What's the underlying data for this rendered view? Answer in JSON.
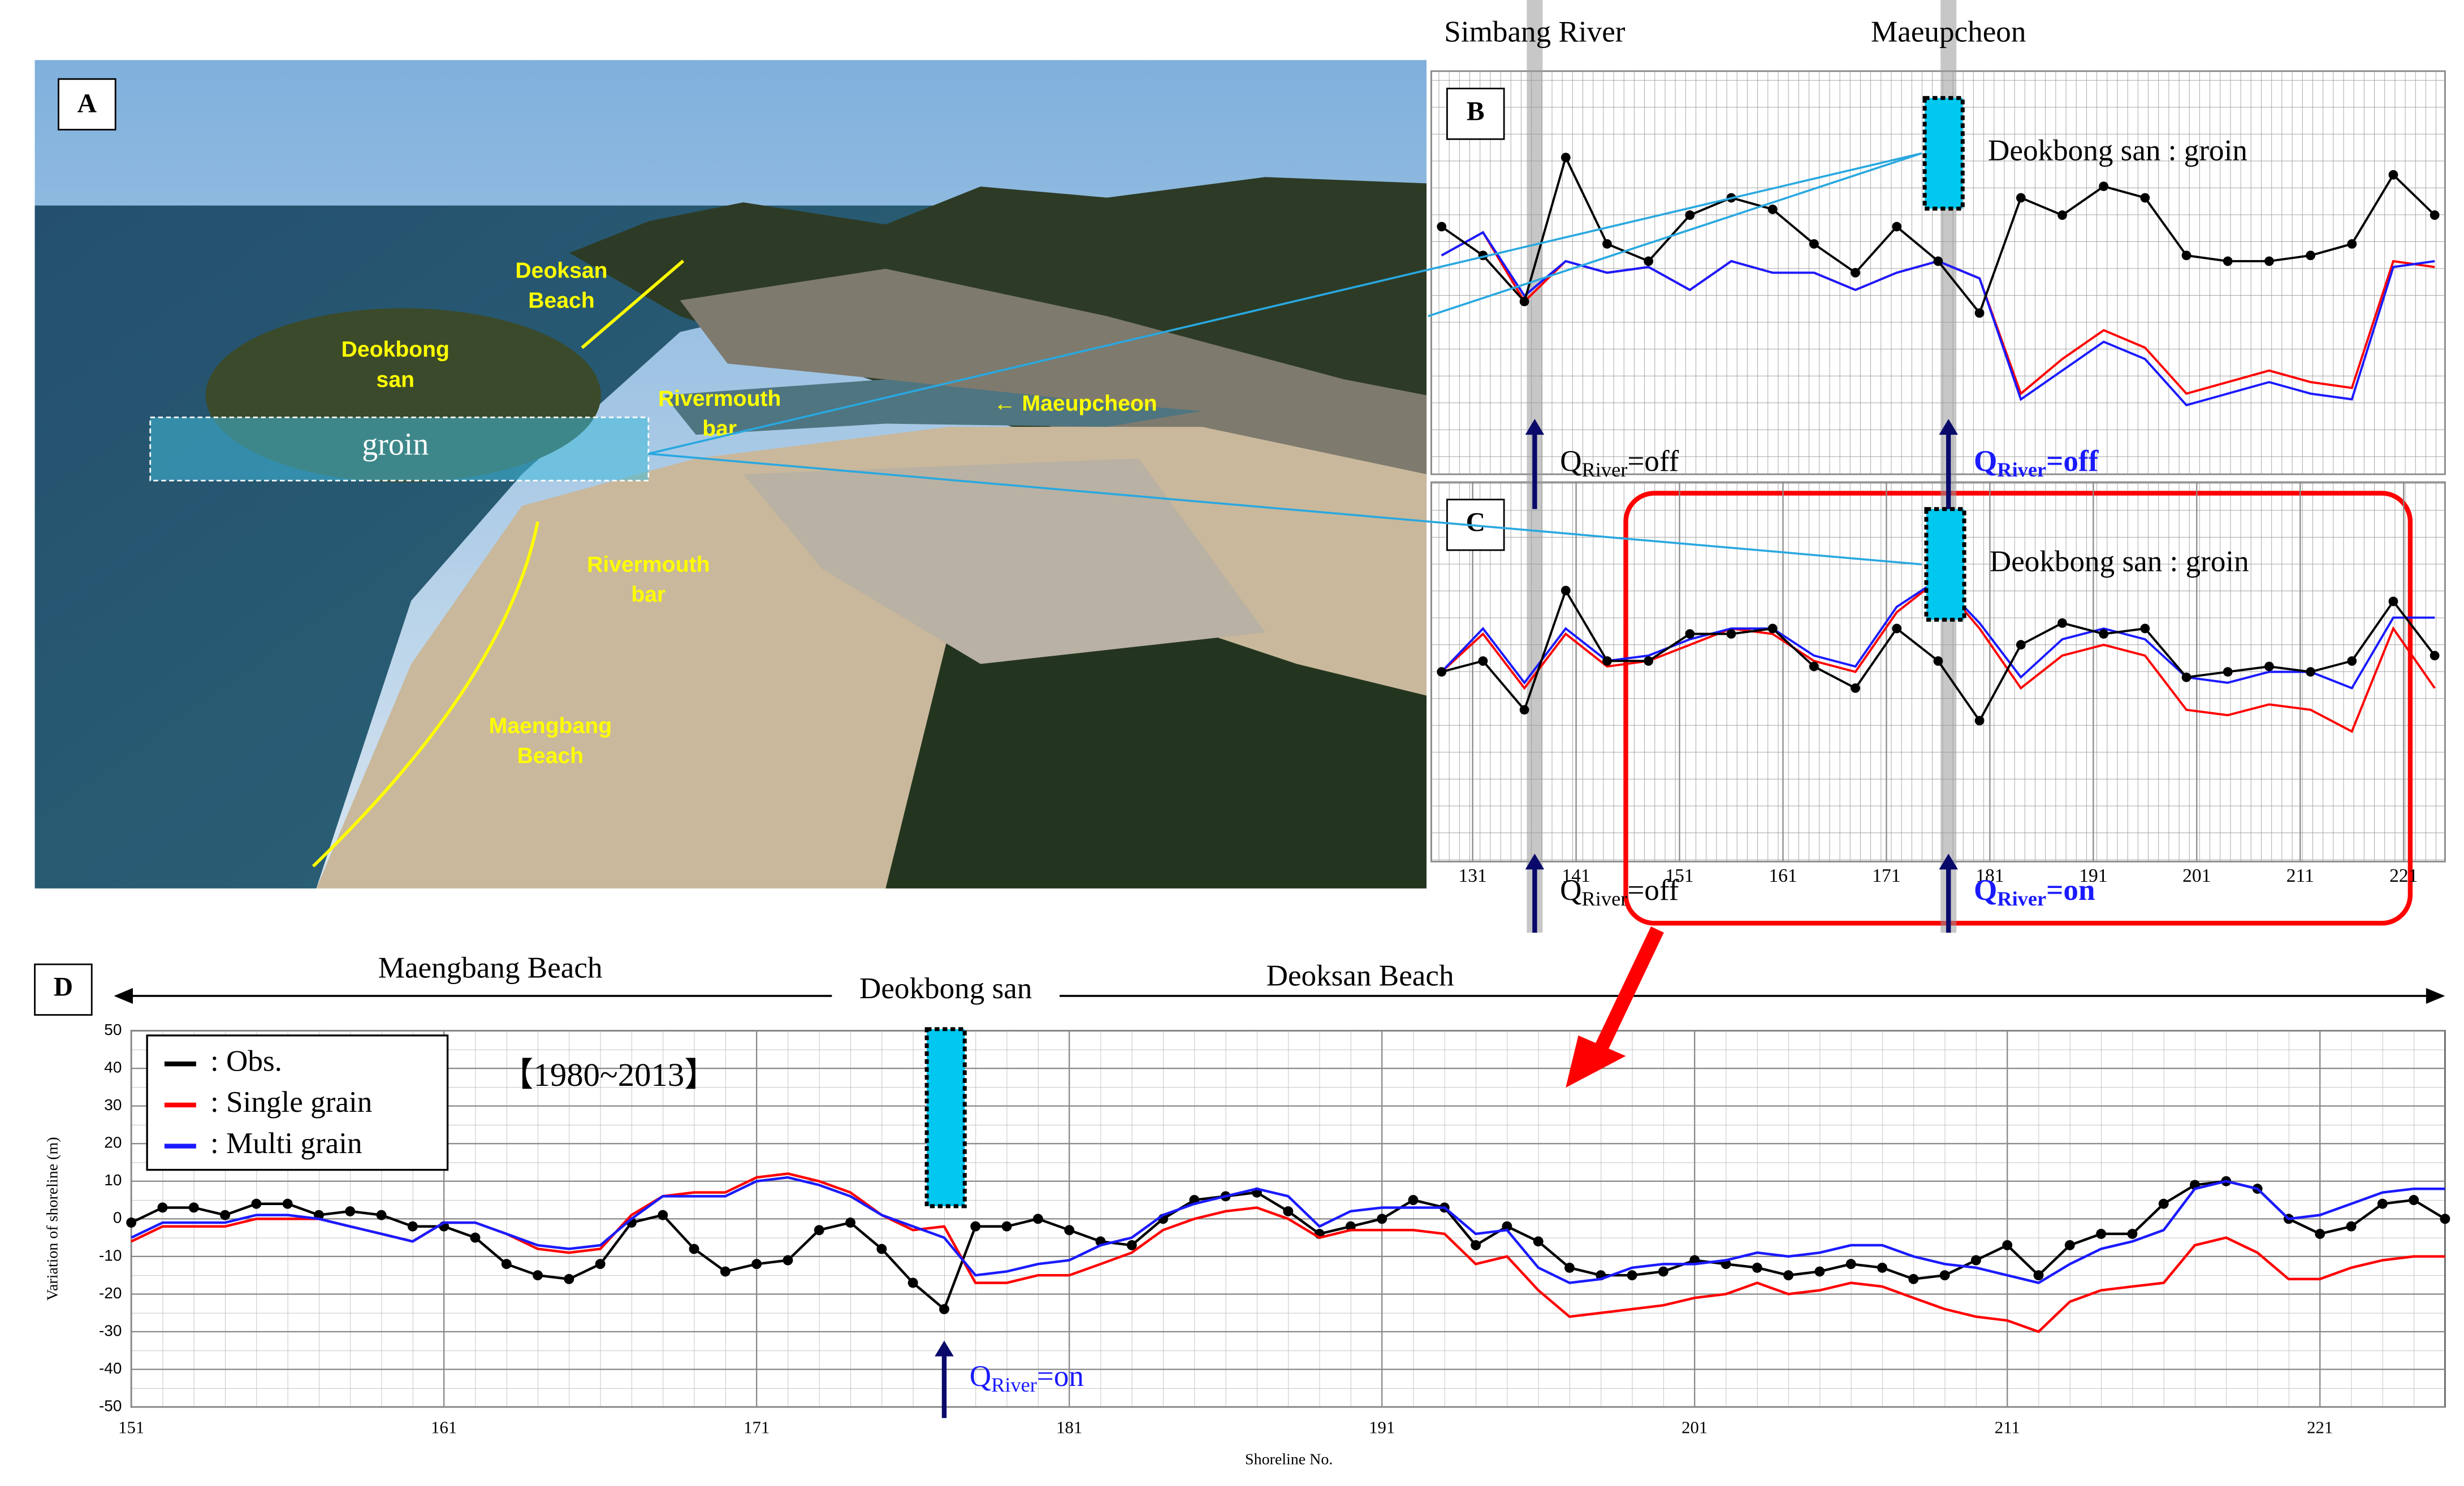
{
  "photo": {
    "panel": "A",
    "groin": "groin",
    "labels": [
      [
        "Deoksan",
        "Beach"
      ],
      [
        "Deokbong",
        "san"
      ],
      [
        "Rivermouth",
        "bar"
      ],
      [
        "← Maeupcheon"
      ],
      [
        "Rivermouth",
        "bar"
      ],
      [
        "Maengbang",
        "Beach"
      ]
    ]
  },
  "chart_data": [
    {
      "type": "line",
      "panel": "B",
      "xlim": [
        127,
        225
      ],
      "ylim": [
        -40,
        30
      ],
      "rivers": [
        {
          "name": "Simbang River",
          "x": 137
        },
        {
          "name": "Maeupcheon",
          "x": 177
        }
      ],
      "groin_label": "Deokbong san : groin",
      "annotations": [
        {
          "x": 137,
          "q": "Q",
          "sub": "River",
          "state": "=off",
          "color": "#000000",
          "bold": false
        },
        {
          "x": 177,
          "q": "Q",
          "sub": "River",
          "state": "=off",
          "color": "#1a1aff",
          "bold": true
        }
      ],
      "x": [
        128,
        132,
        136,
        140,
        144,
        148,
        152,
        156,
        160,
        164,
        168,
        172,
        176,
        180,
        184,
        188,
        192,
        196,
        200,
        204,
        208,
        212,
        216,
        220,
        224
      ],
      "series": [
        {
          "color": "#ff0000",
          "values": [
            -2,
            2,
            -10,
            -3,
            -5,
            -4,
            -8,
            -3,
            -5,
            -5,
            -8,
            -5,
            -3,
            -6,
            -26,
            -20,
            -15,
            -18,
            -26,
            -24,
            -22,
            -24,
            -25,
            -3,
            -4
          ]
        },
        {
          "color": "#1a1aff",
          "values": [
            -2,
            2,
            -9,
            -3,
            -5,
            -4,
            -8,
            -3,
            -5,
            -5,
            -8,
            -5,
            -3,
            -6,
            -27,
            -22,
            -17,
            -20,
            -28,
            -26,
            -24,
            -26,
            -27,
            -4,
            -3
          ]
        },
        {
          "color": "#000000",
          "marker": true,
          "values": [
            3,
            -2,
            -10,
            15,
            0,
            -3,
            5,
            8,
            6,
            0,
            -5,
            3,
            -3,
            -12,
            8,
            5,
            10,
            8,
            -2,
            -3,
            -3,
            -2,
            0,
            12,
            5
          ]
        }
      ]
    },
    {
      "type": "line",
      "panel": "C",
      "xlim": [
        127,
        225
      ],
      "ylim": [
        -40,
        30
      ],
      "xticks": [
        131,
        141,
        151,
        161,
        171,
        181,
        191,
        201,
        211,
        221
      ],
      "groin_label": "Deokbong san : groin",
      "annotations": [
        {
          "x": 137,
          "q": "Q",
          "sub": "River",
          "state": "=off",
          "color": "#000000",
          "bold": false
        },
        {
          "x": 177,
          "q": "Q",
          "sub": "River",
          "state": "=on",
          "color": "#1a1aff",
          "bold": true
        }
      ],
      "x": [
        128,
        132,
        136,
        140,
        144,
        148,
        152,
        156,
        160,
        164,
        168,
        172,
        176,
        180,
        184,
        188,
        192,
        196,
        200,
        204,
        208,
        212,
        216,
        220,
        224
      ],
      "series": [
        {
          "color": "#ff0000",
          "values": [
            -5,
            2,
            -8,
            2,
            -4,
            -3,
            0,
            3,
            2,
            -3,
            -5,
            6,
            12,
            3,
            -8,
            -2,
            0,
            -2,
            -12,
            -13,
            -11,
            -12,
            -16,
            3,
            -8
          ]
        },
        {
          "color": "#1a1aff",
          "values": [
            -5,
            3,
            -7,
            3,
            -3,
            -2,
            1,
            3,
            3,
            -2,
            -4,
            7,
            12,
            4,
            -6,
            1,
            3,
            1,
            -6,
            -7,
            -5,
            -5,
            -8,
            5,
            5
          ]
        },
        {
          "color": "#000000",
          "marker": true,
          "values": [
            -5,
            -3,
            -12,
            10,
            -3,
            -3,
            2,
            2,
            3,
            -4,
            -8,
            3,
            -3,
            -14,
            0,
            4,
            2,
            3,
            -6,
            -5,
            -4,
            -5,
            -3,
            8,
            -2
          ]
        }
      ]
    },
    {
      "type": "line",
      "panel": "D",
      "xlim": [
        151,
        225
      ],
      "ylim": [
        -50,
        50
      ],
      "xticks": [
        151,
        161,
        171,
        181,
        191,
        201,
        211,
        221
      ],
      "yticks": [
        -50,
        -40,
        -30,
        -20,
        -10,
        0,
        10,
        20,
        30,
        40,
        50
      ],
      "xlabel": "Shoreline No.",
      "ylabel": "Variation of shoreline (m)",
      "regions": [
        "Maengbang Beach",
        "Deokbong san",
        "Deoksan Beach"
      ],
      "period": "【1980~2013】",
      "annotations": [
        {
          "x": 177,
          "q": "Q",
          "sub": "River",
          "state": "=on",
          "color": "#1a1aff",
          "bold": false
        }
      ],
      "x": [
        151,
        152,
        153,
        154,
        155,
        156,
        157,
        158,
        159,
        160,
        161,
        162,
        163,
        164,
        165,
        166,
        167,
        168,
        169,
        170,
        171,
        172,
        173,
        174,
        175,
        176,
        177,
        178,
        179,
        180,
        181,
        182,
        183,
        184,
        185,
        186,
        187,
        188,
        189,
        190,
        191,
        192,
        193,
        194,
        195,
        196,
        197,
        198,
        199,
        200,
        201,
        202,
        203,
        204,
        205,
        206,
        207,
        208,
        209,
        210,
        211,
        212,
        213,
        214,
        215,
        216,
        217,
        218,
        219,
        220,
        221,
        222,
        223,
        224,
        225
      ],
      "series": [
        {
          "name": ": Obs.",
          "color": "#000000",
          "marker": true,
          "values": [
            -1,
            3,
            3,
            1,
            4,
            4,
            1,
            2,
            1,
            -2,
            -2,
            -5,
            -12,
            -15,
            -16,
            -12,
            -1,
            1,
            -8,
            -14,
            -12,
            -11,
            -3,
            -1,
            -8,
            -17,
            -24,
            -2,
            -2,
            0,
            -3,
            -6,
            -7,
            0,
            5,
            6,
            7,
            2,
            -4,
            -2,
            0,
            5,
            3,
            -7,
            -2,
            -6,
            -13,
            -15,
            -15,
            -14,
            -11,
            -12,
            -13,
            -15,
            -14,
            -12,
            -13,
            -16,
            -15,
            -11,
            -7,
            -15,
            -7,
            -4,
            -4,
            4,
            9,
            10,
            8,
            0,
            -4,
            -2,
            4,
            5,
            0
          ]
        },
        {
          "name": ": Single grain",
          "color": "#ff0000",
          "values": [
            -6,
            -2,
            -2,
            -2,
            0,
            0,
            0,
            -2,
            -4,
            -6,
            -1,
            -1,
            -4,
            -8,
            -9,
            -8,
            1,
            6,
            7,
            7,
            11,
            12,
            10,
            7,
            1,
            -3,
            -2,
            -17,
            -17,
            -15,
            -15,
            -12,
            -9,
            -3,
            0,
            2,
            3,
            0,
            -5,
            -3,
            -3,
            -3,
            -4,
            -12,
            -10,
            -19,
            -26,
            -25,
            -24,
            -23,
            -21,
            -20,
            -17,
            -20,
            -19,
            -17,
            -18,
            -21,
            -24,
            -26,
            -27,
            -30,
            -22,
            -19,
            -18,
            -17,
            -7,
            -5,
            -9,
            -16,
            -16,
            -13,
            -11,
            -10,
            -10
          ]
        },
        {
          "name": ": Multi grain",
          "color": "#1a1aff",
          "values": [
            -5,
            -1,
            -1,
            -1,
            1,
            1,
            0,
            -2,
            -4,
            -6,
            -1,
            -1,
            -4,
            -7,
            -8,
            -7,
            0,
            6,
            6,
            6,
            10,
            11,
            9,
            6,
            1,
            -2,
            -5,
            -15,
            -14,
            -12,
            -11,
            -7,
            -5,
            1,
            4,
            6,
            8,
            6,
            -2,
            2,
            3,
            3,
            3,
            -4,
            -3,
            -13,
            -17,
            -16,
            -13,
            -12,
            -12,
            -11,
            -9,
            -10,
            -9,
            -7,
            -7,
            -10,
            -12,
            -13,
            -15,
            -17,
            -12,
            -8,
            -6,
            -3,
            8,
            10,
            8,
            0,
            1,
            4,
            7,
            8,
            8
          ]
        }
      ]
    }
  ]
}
